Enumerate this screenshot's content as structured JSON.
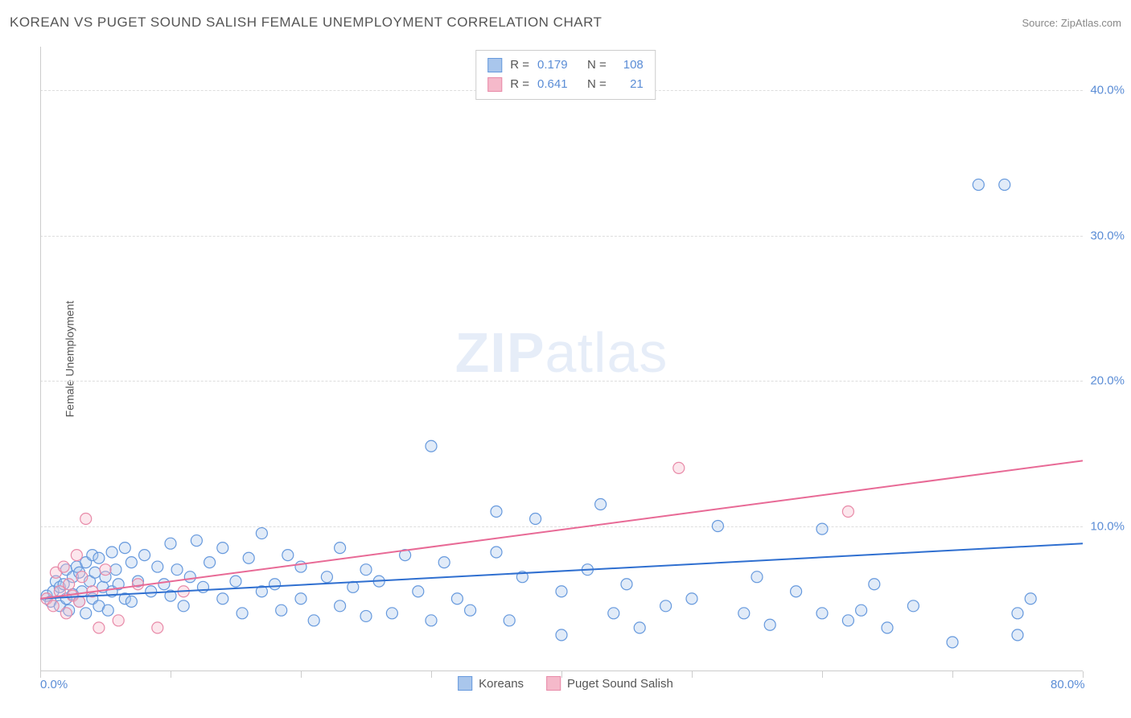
{
  "header": {
    "title": "KOREAN VS PUGET SOUND SALISH FEMALE UNEMPLOYMENT CORRELATION CHART",
    "source_label": "Source: ",
    "source_name": "ZipAtlas.com"
  },
  "chart": {
    "type": "scatter",
    "ylabel": "Female Unemployment",
    "background_color": "#ffffff",
    "grid_color": "#dddddd",
    "tick_label_color": "#5b8dd6",
    "axis_label_color": "#555555",
    "xlim": [
      0,
      80
    ],
    "ylim": [
      0,
      43
    ],
    "xticks": [
      0,
      10,
      20,
      30,
      40,
      50,
      60,
      70,
      80
    ],
    "xtick_labels": [
      "0.0%",
      "",
      "",
      "",
      "",
      "",
      "",
      "",
      "80.0%"
    ],
    "yticks": [
      10,
      20,
      30,
      40
    ],
    "ytick_labels": [
      "10.0%",
      "20.0%",
      "30.0%",
      "40.0%"
    ],
    "marker_radius": 7,
    "marker_fill_opacity": 0.35,
    "marker_stroke_width": 1.2,
    "line_width": 2,
    "series": [
      {
        "name": "Koreans",
        "color_fill": "#a9c6ec",
        "color_stroke": "#6699dd",
        "line_color": "#2f6fd0",
        "R": "0.179",
        "N": "108",
        "trend": {
          "x1": 0,
          "y1": 5.0,
          "x2": 80,
          "y2": 8.8
        },
        "points": [
          [
            0.5,
            5.2
          ],
          [
            0.8,
            4.8
          ],
          [
            1.0,
            5.5
          ],
          [
            1.2,
            6.2
          ],
          [
            1.5,
            4.5
          ],
          [
            1.5,
            5.8
          ],
          [
            1.8,
            6.0
          ],
          [
            2.0,
            5.0
          ],
          [
            2.0,
            7.0
          ],
          [
            2.2,
            4.2
          ],
          [
            2.5,
            6.5
          ],
          [
            2.5,
            5.3
          ],
          [
            2.8,
            7.2
          ],
          [
            3.0,
            4.8
          ],
          [
            3.0,
            6.8
          ],
          [
            3.2,
            5.5
          ],
          [
            3.5,
            7.5
          ],
          [
            3.5,
            4.0
          ],
          [
            3.8,
            6.2
          ],
          [
            4.0,
            8.0
          ],
          [
            4.0,
            5.0
          ],
          [
            4.2,
            6.8
          ],
          [
            4.5,
            4.5
          ],
          [
            4.5,
            7.8
          ],
          [
            4.8,
            5.8
          ],
          [
            5.0,
            6.5
          ],
          [
            5.2,
            4.2
          ],
          [
            5.5,
            8.2
          ],
          [
            5.5,
            5.5
          ],
          [
            5.8,
            7.0
          ],
          [
            6.0,
            6.0
          ],
          [
            6.5,
            8.5
          ],
          [
            6.5,
            5.0
          ],
          [
            7.0,
            7.5
          ],
          [
            7.0,
            4.8
          ],
          [
            7.5,
            6.2
          ],
          [
            8.0,
            8.0
          ],
          [
            8.5,
            5.5
          ],
          [
            9.0,
            7.2
          ],
          [
            9.5,
            6.0
          ],
          [
            10.0,
            8.8
          ],
          [
            10.0,
            5.2
          ],
          [
            10.5,
            7.0
          ],
          [
            11.0,
            4.5
          ],
          [
            11.5,
            6.5
          ],
          [
            12.0,
            9.0
          ],
          [
            12.5,
            5.8
          ],
          [
            13.0,
            7.5
          ],
          [
            14.0,
            8.5
          ],
          [
            14.0,
            5.0
          ],
          [
            15.0,
            6.2
          ],
          [
            15.5,
            4.0
          ],
          [
            16.0,
            7.8
          ],
          [
            17.0,
            5.5
          ],
          [
            17.0,
            9.5
          ],
          [
            18.0,
            6.0
          ],
          [
            18.5,
            4.2
          ],
          [
            19.0,
            8.0
          ],
          [
            20.0,
            5.0
          ],
          [
            20.0,
            7.2
          ],
          [
            21.0,
            3.5
          ],
          [
            22.0,
            6.5
          ],
          [
            23.0,
            4.5
          ],
          [
            23.0,
            8.5
          ],
          [
            24.0,
            5.8
          ],
          [
            25.0,
            7.0
          ],
          [
            25.0,
            3.8
          ],
          [
            26.0,
            6.2
          ],
          [
            27.0,
            4.0
          ],
          [
            28.0,
            8.0
          ],
          [
            29.0,
            5.5
          ],
          [
            30.0,
            15.5
          ],
          [
            30.0,
            3.5
          ],
          [
            31.0,
            7.5
          ],
          [
            32.0,
            5.0
          ],
          [
            33.0,
            4.2
          ],
          [
            35.0,
            8.2
          ],
          [
            35.0,
            11.0
          ],
          [
            36.0,
            3.5
          ],
          [
            37.0,
            6.5
          ],
          [
            38.0,
            10.5
          ],
          [
            40.0,
            2.5
          ],
          [
            40.0,
            5.5
          ],
          [
            42.0,
            7.0
          ],
          [
            43.0,
            11.5
          ],
          [
            44.0,
            4.0
          ],
          [
            45.0,
            6.0
          ],
          [
            46.0,
            3.0
          ],
          [
            48.0,
            4.5
          ],
          [
            50.0,
            5.0
          ],
          [
            52.0,
            10.0
          ],
          [
            54.0,
            4.0
          ],
          [
            55.0,
            6.5
          ],
          [
            56.0,
            3.2
          ],
          [
            58.0,
            5.5
          ],
          [
            60.0,
            4.0
          ],
          [
            60.0,
            9.8
          ],
          [
            62.0,
            3.5
          ],
          [
            63.0,
            4.2
          ],
          [
            64.0,
            6.0
          ],
          [
            65.0,
            3.0
          ],
          [
            67.0,
            4.5
          ],
          [
            70.0,
            2.0
          ],
          [
            72.0,
            33.5
          ],
          [
            74.0,
            33.5
          ],
          [
            75.0,
            4.0
          ],
          [
            75.0,
            2.5
          ],
          [
            76.0,
            5.0
          ]
        ]
      },
      {
        "name": "Puget Sound Salish",
        "color_fill": "#f5b9ca",
        "color_stroke": "#e88aa8",
        "line_color": "#e86a96",
        "R": "0.641",
        "N": "21",
        "trend": {
          "x1": 0,
          "y1": 5.0,
          "x2": 80,
          "y2": 14.5
        },
        "points": [
          [
            0.5,
            5.0
          ],
          [
            1.0,
            4.5
          ],
          [
            1.2,
            6.8
          ],
          [
            1.5,
            5.5
          ],
          [
            1.8,
            7.2
          ],
          [
            2.0,
            4.0
          ],
          [
            2.2,
            6.0
          ],
          [
            2.5,
            5.2
          ],
          [
            2.8,
            8.0
          ],
          [
            3.0,
            4.8
          ],
          [
            3.2,
            6.5
          ],
          [
            3.5,
            10.5
          ],
          [
            4.0,
            5.5
          ],
          [
            4.5,
            3.0
          ],
          [
            5.0,
            7.0
          ],
          [
            6.0,
            3.5
          ],
          [
            7.5,
            6.0
          ],
          [
            9.0,
            3.0
          ],
          [
            11.0,
            5.5
          ],
          [
            49.0,
            14.0
          ],
          [
            62.0,
            11.0
          ]
        ]
      }
    ]
  },
  "watermark": {
    "bold": "ZIP",
    "light": "atlas"
  },
  "legend_bottom": [
    {
      "label": "Koreans",
      "fill": "#a9c6ec",
      "stroke": "#6699dd"
    },
    {
      "label": "Puget Sound Salish",
      "fill": "#f5b9ca",
      "stroke": "#e88aa8"
    }
  ]
}
